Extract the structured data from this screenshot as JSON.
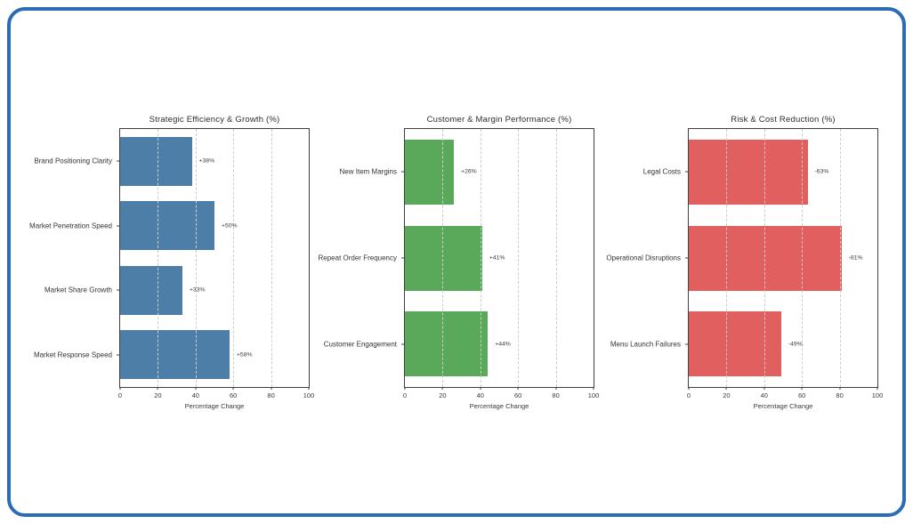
{
  "page": {
    "background": "#ffffff"
  },
  "card": {
    "border_color": "#2b6cb4",
    "background": "#ffffff"
  },
  "chart_data": [
    {
      "type": "bar",
      "orientation": "horizontal",
      "title": "Strategic Efficiency & Growth (%)",
      "categories": [
        "Brand Positioning Clarity",
        "Market Penetration Speed",
        "Market Share Growth",
        "Market Response Speed"
      ],
      "values": [
        38,
        50,
        33,
        58
      ],
      "value_labels": [
        "+38%",
        "+50%",
        "+33%",
        "+58%"
      ],
      "bar_color": "#4d7ea8",
      "xlabel": "Percentage Change",
      "xlim": [
        0,
        100
      ],
      "xticks": [
        0,
        20,
        40,
        60,
        80,
        100
      ],
      "grid": true,
      "legend": false
    },
    {
      "type": "bar",
      "orientation": "horizontal",
      "title": "Customer & Margin Performance (%)",
      "categories": [
        "New Item Margins",
        "Repeat Order Frequency",
        "Customer Engagement"
      ],
      "values": [
        26,
        41,
        44
      ],
      "value_labels": [
        "+26%",
        "+41%",
        "+44%"
      ],
      "bar_color": "#5aa85a",
      "xlabel": "Percentage Change",
      "xlim": [
        0,
        100
      ],
      "xticks": [
        0,
        20,
        40,
        60,
        80,
        100
      ],
      "grid": true,
      "legend": false
    },
    {
      "type": "bar",
      "orientation": "horizontal",
      "title": "Risk & Cost Reduction (%)",
      "categories": [
        "Legal Costs",
        "Operational Disruptions",
        "Menu Launch Failures"
      ],
      "values": [
        63,
        81,
        49
      ],
      "value_labels": [
        "-63%",
        "-81%",
        "-49%"
      ],
      "bar_color": "#e25f5f",
      "xlabel": "Percentage Change",
      "xlim": [
        0,
        100
      ],
      "xticks": [
        0,
        20,
        40,
        60,
        80,
        100
      ],
      "grid": true,
      "legend": false
    }
  ]
}
